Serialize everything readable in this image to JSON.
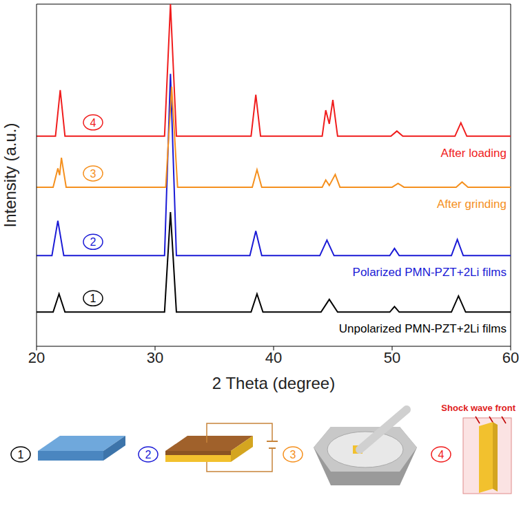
{
  "chart_data": {
    "type": "line",
    "x_label": "2 Theta (degree)",
    "y_label": "Intensity (a.u.)",
    "xlim": [
      20,
      60
    ],
    "xticks": [
      20,
      30,
      40,
      50,
      60
    ],
    "ylim": [
      0,
      100
    ],
    "tick_labels": "x",
    "grid": false,
    "series": [
      {
        "name": "Unpolarized PMN-PZT+2Li films",
        "number_label": "1",
        "color": "#000000",
        "x": [
          20,
          21.4,
          21.9,
          22.4,
          30.8,
          31.3,
          31.8,
          38.1,
          38.6,
          39.1,
          44.0,
          44.7,
          45.4,
          49.8,
          50.2,
          50.6,
          55.0,
          55.6,
          56.2,
          60
        ],
        "values": [
          10,
          10,
          15.3,
          10,
          10,
          39.2,
          10,
          10,
          15.3,
          10,
          10,
          13.7,
          10,
          10,
          11.6,
          10,
          10,
          14.7,
          10,
          10
        ]
      },
      {
        "name": "Polarized PMN-PZT+2Li films",
        "number_label": "2",
        "color": "#1a1ad6",
        "x": [
          20,
          21.3,
          21.8,
          22.3,
          30.8,
          31.3,
          31.8,
          38.0,
          38.5,
          39.0,
          43.9,
          44.5,
          45.1,
          49.8,
          50.2,
          50.6,
          55.0,
          55.5,
          56.0,
          60
        ],
        "values": [
          26.5,
          26.5,
          36.7,
          26.5,
          26.5,
          79.6,
          26.5,
          26.5,
          33.7,
          26.5,
          26.5,
          31,
          26.5,
          26.5,
          28.6,
          26.5,
          26.5,
          31.2,
          26.5,
          26.5
        ]
      },
      {
        "name": "After grinding",
        "number_label": "3",
        "color": "#f5901e",
        "x": [
          20,
          21.4,
          21.8,
          21.95,
          22.1,
          22.5,
          30.9,
          31.4,
          31.9,
          38.2,
          38.6,
          39.0,
          44.1,
          44.4,
          44.7,
          45.2,
          45.6,
          50.0,
          50.5,
          51.0,
          55.4,
          55.9,
          56.4,
          60
        ],
        "values": [
          46.5,
          46.5,
          52,
          50,
          55.1,
          46.5,
          46.5,
          75.9,
          46.5,
          46.5,
          51.6,
          46.5,
          46.5,
          48.6,
          47,
          50.2,
          46.5,
          46.5,
          47.6,
          46.5,
          46.5,
          48,
          46.5,
          46.5
        ]
      },
      {
        "name": "After loading",
        "number_label": "4",
        "color": "#f01c1c",
        "x": [
          20,
          21.6,
          22.0,
          22.4,
          30.8,
          31.3,
          31.8,
          38.1,
          38.5,
          38.9,
          44.1,
          44.4,
          44.7,
          45.0,
          45.4,
          49.9,
          50.4,
          50.9,
          55.3,
          55.8,
          56.3,
          60
        ],
        "values": [
          61.4,
          61.4,
          74.9,
          61.4,
          61.4,
          100,
          61.4,
          61.4,
          73.5,
          61.4,
          61.4,
          69,
          65,
          72,
          61.4,
          61.4,
          62.9,
          61.4,
          61.4,
          65.3,
          61.4,
          61.4
        ]
      }
    ],
    "schematic": {
      "steps": [
        "1",
        "2",
        "3",
        "4"
      ],
      "shock_label": "Shock wave front"
    }
  }
}
